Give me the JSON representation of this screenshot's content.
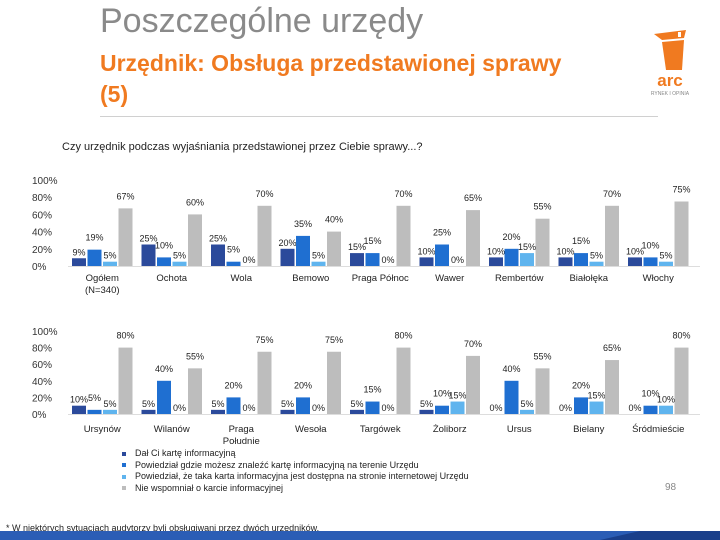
{
  "header": {
    "title": "Poszczególne urzędy",
    "subtitle": "Urzędnik: Obsługa przedstawionej sprawy (5)"
  },
  "logo": {
    "brand": "arc",
    "tagline": "RYNEK I OPINIA"
  },
  "question": "Czy urzędnik podczas wyjaśniania przedstawionej przez Ciebie sprawy...?",
  "colors": {
    "accent": "#f07a20",
    "series": [
      "#2b4a9b",
      "#1f6fd1",
      "#5fb4ee",
      "#bdbdbd"
    ]
  },
  "chart_data": {
    "type": "bar",
    "y_ticks": [
      "100%",
      "80%",
      "60%",
      "40%",
      "20%",
      "0%"
    ],
    "ylim": [
      0,
      100
    ],
    "series_names": [
      "Dał Ci kartę informacyjną",
      "Powiedział gdzie możesz znaleźć kartę informacyjną na terenie Urzędu",
      "Powiedział, że taka karta informacyjna jest dostępna na stronie internetowej Urzędu",
      "Nie wspomniał o karcie informacyjnej"
    ],
    "panels": [
      {
        "groups": [
          {
            "name": "Ogółem (N=340)",
            "values": [
              9,
              19,
              5,
              67
            ]
          },
          {
            "name": "Ochota",
            "values": [
              25,
              10,
              5,
              60
            ]
          },
          {
            "name": "Wola",
            "values": [
              25,
              5,
              0,
              70
            ]
          },
          {
            "name": "Bemowo",
            "values": [
              20,
              35,
              5,
              40
            ]
          },
          {
            "name": "Praga Północ",
            "values": [
              15,
              15,
              0,
              70
            ]
          },
          {
            "name": "Wawer",
            "values": [
              10,
              25,
              0,
              65
            ]
          },
          {
            "name": "Rembertów",
            "values": [
              10,
              20,
              15,
              55
            ]
          },
          {
            "name": "Białołęka",
            "values": [
              10,
              15,
              5,
              70
            ]
          },
          {
            "name": "Włochy",
            "values": [
              10,
              10,
              5,
              75
            ]
          }
        ]
      },
      {
        "groups": [
          {
            "name": "Ursynów",
            "values": [
              10,
              5,
              5,
              80
            ]
          },
          {
            "name": "Wilanów",
            "values": [
              5,
              40,
              0,
              55
            ]
          },
          {
            "name": "Praga Południe",
            "values": [
              5,
              20,
              0,
              75
            ]
          },
          {
            "name": "Wesoła",
            "values": [
              5,
              20,
              0,
              75
            ]
          },
          {
            "name": "Targówek",
            "values": [
              5,
              15,
              0,
              80
            ]
          },
          {
            "name": "Żoliborz",
            "values": [
              5,
              10,
              15,
              70
            ]
          },
          {
            "name": "Ursus",
            "values": [
              0,
              40,
              5,
              55
            ]
          },
          {
            "name": "Bielany",
            "values": [
              0,
              20,
              15,
              65
            ]
          },
          {
            "name": "Śródmieście",
            "values": [
              0,
              10,
              10,
              80
            ]
          }
        ]
      }
    ]
  },
  "footnote": "* W niektórych sytuacjach audytorzy byli obsługiwani przez dwóch urzędników.",
  "page_number": "98"
}
